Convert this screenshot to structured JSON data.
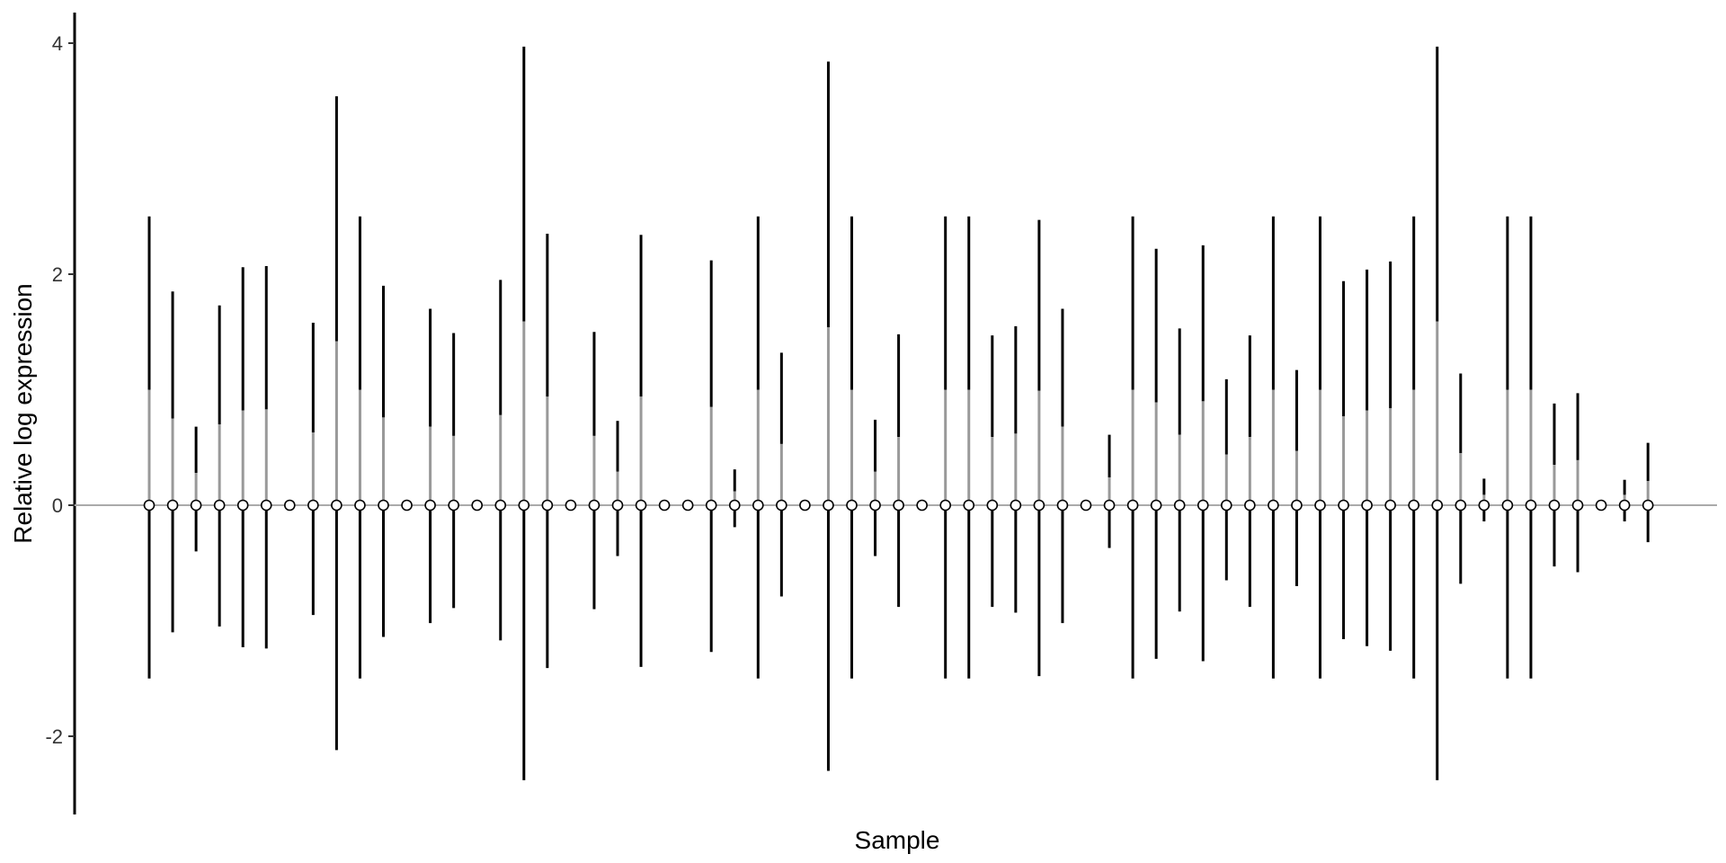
{
  "chart_data": {
    "type": "boxplot",
    "xlabel": "Sample",
    "ylabel": "Relative log expression",
    "ylim": [
      -2.7,
      4.3
    ],
    "yticks": [
      -2,
      0,
      2,
      4
    ],
    "ytick_labels": [
      "-2",
      "0",
      "2",
      "4"
    ],
    "reference_line_y": 0,
    "grid": false,
    "colors": {
      "whisker": "#000000",
      "box": "#999999",
      "reference": "#aaaaaa",
      "median": "#000000"
    },
    "samples": [
      {
        "lo": -1.5,
        "q3": 1.0,
        "hi": 2.5
      },
      {
        "lo": -1.1,
        "q3": 0.75,
        "hi": 1.85
      },
      {
        "lo": -0.4,
        "q3": 0.28,
        "hi": 0.68
      },
      {
        "lo": -1.05,
        "q3": 0.7,
        "hi": 1.73
      },
      {
        "lo": -1.23,
        "q3": 0.82,
        "hi": 2.06
      },
      {
        "lo": -1.24,
        "q3": 0.83,
        "hi": 2.07
      },
      {
        "lo": 0,
        "q3": 0,
        "hi": 0
      },
      {
        "lo": -0.95,
        "q3": 0.63,
        "hi": 1.58
      },
      {
        "lo": -2.12,
        "q3": 1.42,
        "hi": 3.54
      },
      {
        "lo": -1.5,
        "q3": 1.0,
        "hi": 2.5
      },
      {
        "lo": -1.14,
        "q3": 0.76,
        "hi": 1.9
      },
      {
        "lo": 0,
        "q3": 0,
        "hi": 0
      },
      {
        "lo": -1.02,
        "q3": 0.68,
        "hi": 1.7
      },
      {
        "lo": -0.89,
        "q3": 0.6,
        "hi": 1.49
      },
      {
        "lo": 0,
        "q3": 0,
        "hi": 0
      },
      {
        "lo": -1.17,
        "q3": 0.78,
        "hi": 1.95
      },
      {
        "lo": -2.38,
        "q3": 1.59,
        "hi": 3.97
      },
      {
        "lo": -1.41,
        "q3": 0.94,
        "hi": 2.35
      },
      {
        "lo": 0,
        "q3": 0,
        "hi": 0
      },
      {
        "lo": -0.9,
        "q3": 0.6,
        "hi": 1.5
      },
      {
        "lo": -0.44,
        "q3": 0.29,
        "hi": 0.73
      },
      {
        "lo": -1.4,
        "q3": 0.94,
        "hi": 2.34
      },
      {
        "lo": 0,
        "q3": 0,
        "hi": 0
      },
      {
        "lo": 0,
        "q3": 0,
        "hi": 0
      },
      {
        "lo": -1.27,
        "q3": 0.85,
        "hi": 2.12
      },
      {
        "lo": -0.19,
        "q3": 0.12,
        "hi": 0.31
      },
      {
        "lo": -1.5,
        "q3": 1.0,
        "hi": 2.5
      },
      {
        "lo": -0.79,
        "q3": 0.53,
        "hi": 1.32
      },
      {
        "lo": 0,
        "q3": 0,
        "hi": 0
      },
      {
        "lo": -2.3,
        "q3": 1.54,
        "hi": 3.84
      },
      {
        "lo": -1.5,
        "q3": 1.0,
        "hi": 2.5
      },
      {
        "lo": -0.44,
        "q3": 0.29,
        "hi": 0.74
      },
      {
        "lo": -0.88,
        "q3": 0.59,
        "hi": 1.48
      },
      {
        "lo": 0,
        "q3": 0,
        "hi": 0
      },
      {
        "lo": -1.5,
        "q3": 1.0,
        "hi": 2.5
      },
      {
        "lo": -1.5,
        "q3": 1.0,
        "hi": 2.5
      },
      {
        "lo": -0.88,
        "q3": 0.59,
        "hi": 1.47
      },
      {
        "lo": -0.93,
        "q3": 0.62,
        "hi": 1.55
      },
      {
        "lo": -1.48,
        "q3": 0.99,
        "hi": 2.47
      },
      {
        "lo": -1.02,
        "q3": 0.68,
        "hi": 1.7
      },
      {
        "lo": 0,
        "q3": 0,
        "hi": 0
      },
      {
        "lo": -0.37,
        "q3": 0.24,
        "hi": 0.61
      },
      {
        "lo": -1.5,
        "q3": 1.0,
        "hi": 2.5
      },
      {
        "lo": -1.33,
        "q3": 0.89,
        "hi": 2.22
      },
      {
        "lo": -0.92,
        "q3": 0.61,
        "hi": 1.53
      },
      {
        "lo": -1.35,
        "q3": 0.9,
        "hi": 2.25
      },
      {
        "lo": -0.65,
        "q3": 0.44,
        "hi": 1.09
      },
      {
        "lo": -0.88,
        "q3": 0.59,
        "hi": 1.47
      },
      {
        "lo": -1.5,
        "q3": 1.0,
        "hi": 2.5
      },
      {
        "lo": -0.7,
        "q3": 0.47,
        "hi": 1.17
      },
      {
        "lo": -1.5,
        "q3": 1.0,
        "hi": 2.5
      },
      {
        "lo": -1.16,
        "q3": 0.77,
        "hi": 1.94
      },
      {
        "lo": -1.22,
        "q3": 0.82,
        "hi": 2.04
      },
      {
        "lo": -1.26,
        "q3": 0.84,
        "hi": 2.11
      },
      {
        "lo": -1.5,
        "q3": 1.0,
        "hi": 2.5
      },
      {
        "lo": -2.38,
        "q3": 1.59,
        "hi": 3.97
      },
      {
        "lo": -0.68,
        "q3": 0.45,
        "hi": 1.14
      },
      {
        "lo": -0.14,
        "q3": 0.09,
        "hi": 0.23
      },
      {
        "lo": -1.5,
        "q3": 1.0,
        "hi": 2.5
      },
      {
        "lo": -1.5,
        "q3": 1.0,
        "hi": 2.5
      },
      {
        "lo": -0.53,
        "q3": 0.35,
        "hi": 0.88
      },
      {
        "lo": -0.58,
        "q3": 0.39,
        "hi": 0.97
      },
      {
        "lo": 0,
        "q3": 0,
        "hi": 0
      },
      {
        "lo": -0.14,
        "q3": 0.09,
        "hi": 0.22
      },
      {
        "lo": -0.32,
        "q3": 0.21,
        "hi": 0.54
      }
    ]
  }
}
